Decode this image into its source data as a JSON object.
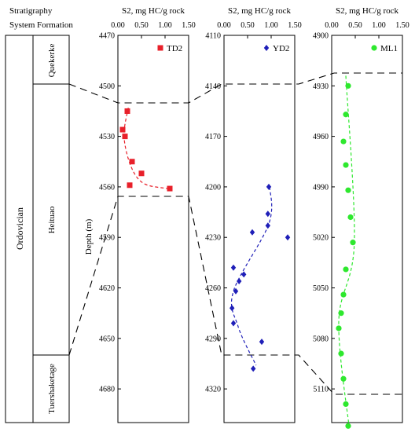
{
  "header": {
    "stratigraphy": "Stratigraphy",
    "system": "System",
    "formation": "Formation"
  },
  "strat": {
    "system_name": "Ordovician",
    "formations": [
      "Quekerke",
      "Heituao",
      "Tuershaketage"
    ]
  },
  "colors": {
    "TD2": "#e8202a",
    "YD2": "#1f1fb8",
    "ML1": "#2ee82e"
  },
  "chart_data": [
    {
      "type": "scatter",
      "xlabel": "S2, mg HC/g rock",
      "ylabel": "Depth (m)",
      "xticks": [
        "0.00",
        "0.50",
        "1.00",
        "1.50"
      ],
      "xlim": [
        0,
        1.5
      ],
      "ylim": [
        4470,
        4700
      ],
      "yticks": [
        4470,
        4500,
        4530,
        4560,
        4590,
        4620,
        4650,
        4680
      ],
      "legend": "top-right",
      "series": [
        {
          "name": "TD2",
          "marker": "square",
          "points": [
            {
              "x": 0.2,
              "y": 4515
            },
            {
              "x": 0.1,
              "y": 4526
            },
            {
              "x": 0.15,
              "y": 4530
            },
            {
              "x": 0.3,
              "y": 4545
            },
            {
              "x": 0.5,
              "y": 4552
            },
            {
              "x": 0.25,
              "y": 4559
            },
            {
              "x": 1.1,
              "y": 4561
            }
          ],
          "trend": [
            [
              0.22,
              4513
            ],
            [
              0.13,
              4530
            ],
            [
              0.28,
              4548
            ],
            [
              0.55,
              4558
            ],
            [
              1.05,
              4561
            ]
          ]
        }
      ]
    },
    {
      "type": "scatter",
      "xlabel": "S2, mg HC/g rock",
      "xticks": [
        "0.00",
        "0.50",
        "1.00",
        "1.50"
      ],
      "xlim": [
        0,
        1.5
      ],
      "ylim": [
        4110,
        4340
      ],
      "yticks": [
        4110,
        4140,
        4170,
        4200,
        4230,
        4260,
        4290,
        4320
      ],
      "legend": "top-right",
      "series": [
        {
          "name": "YD2",
          "marker": "diamond",
          "points": [
            {
              "x": 0.95,
              "y": 4200
            },
            {
              "x": 0.93,
              "y": 4216
            },
            {
              "x": 0.93,
              "y": 4223
            },
            {
              "x": 0.6,
              "y": 4227
            },
            {
              "x": 1.35,
              "y": 4230
            },
            {
              "x": 0.2,
              "y": 4248
            },
            {
              "x": 0.42,
              "y": 4252
            },
            {
              "x": 0.32,
              "y": 4256
            },
            {
              "x": 0.25,
              "y": 4262
            },
            {
              "x": 0.17,
              "y": 4272
            },
            {
              "x": 0.2,
              "y": 4281
            },
            {
              "x": 0.8,
              "y": 4292
            },
            {
              "x": 0.62,
              "y": 4308
            }
          ],
          "trend": [
            [
              0.97,
              4200
            ],
            [
              0.95,
              4222
            ],
            [
              0.2,
              4262
            ],
            [
              0.3,
              4283
            ],
            [
              0.68,
              4306
            ]
          ]
        }
      ]
    },
    {
      "type": "scatter",
      "xlabel": "S2, mg HC/g rock",
      "xticks": [
        "0.00",
        "0.50",
        "1.00",
        "1.50"
      ],
      "xlim": [
        0,
        1.5
      ],
      "ylim": [
        4900,
        5130
      ],
      "yticks": [
        4900,
        4930,
        4960,
        4990,
        5020,
        5050,
        5080,
        5110
      ],
      "legend": "top-right",
      "series": [
        {
          "name": "ML1",
          "marker": "circle",
          "points": [
            {
              "x": 0.35,
              "y": 4930
            },
            {
              "x": 0.3,
              "y": 4947
            },
            {
              "x": 0.25,
              "y": 4963
            },
            {
              "x": 0.3,
              "y": 4977
            },
            {
              "x": 0.35,
              "y": 4992
            },
            {
              "x": 0.4,
              "y": 5008
            },
            {
              "x": 0.45,
              "y": 5023
            },
            {
              "x": 0.3,
              "y": 5039
            },
            {
              "x": 0.25,
              "y": 5054
            },
            {
              "x": 0.2,
              "y": 5065
            },
            {
              "x": 0.15,
              "y": 5074
            },
            {
              "x": 0.2,
              "y": 5089
            },
            {
              "x": 0.25,
              "y": 5104
            },
            {
              "x": 0.3,
              "y": 5119
            },
            {
              "x": 0.35,
              "y": 5132
            }
          ],
          "trend": [
            [
              0.3,
              4924
            ],
            [
              0.48,
              5023
            ],
            [
              0.15,
              5070
            ],
            [
              0.38,
              5135
            ]
          ]
        }
      ]
    }
  ]
}
